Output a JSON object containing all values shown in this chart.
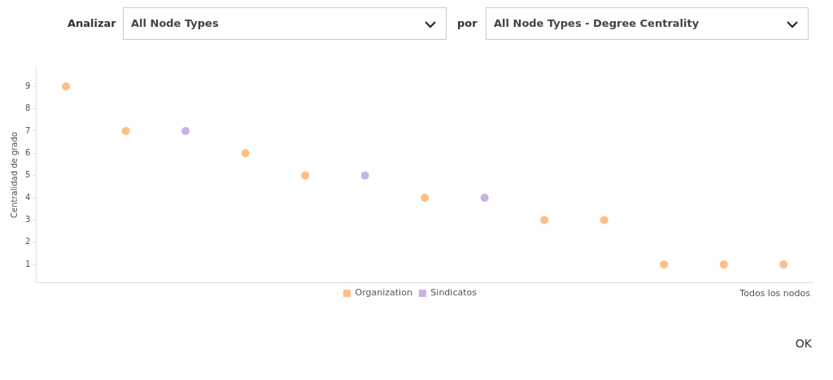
{
  "chart_data": {
    "type": "scatter",
    "ylabel": "Centralidad de grado",
    "xlabel": "Todos los nodos",
    "categories": [
      null,
      null,
      null,
      null,
      null,
      null,
      null,
      null,
      null,
      null,
      null,
      null,
      null
    ],
    "series": [
      {
        "name": "Organization",
        "color": "#fdbf87",
        "values": [
          9,
          7,
          null,
          6,
          5,
          null,
          4,
          null,
          3,
          3,
          1,
          1,
          1
        ]
      },
      {
        "name": "Sindicatos",
        "color": "#c9b3de",
        "values": [
          null,
          null,
          7,
          null,
          null,
          5,
          null,
          4,
          null,
          null,
          null,
          null,
          null
        ]
      }
    ],
    "ylim": [
      0.2,
      9.85
    ],
    "yticks": [
      1,
      2,
      3,
      4,
      5,
      6,
      7,
      8,
      9
    ],
    "grid": false,
    "legend": "bottom",
    "marker": "circle",
    "tick_labels": "y",
    "annotations": [
      "Analizar",
      "All Node Types",
      "por",
      "All Node Types - Degree Centrality",
      "OK"
    ]
  }
}
